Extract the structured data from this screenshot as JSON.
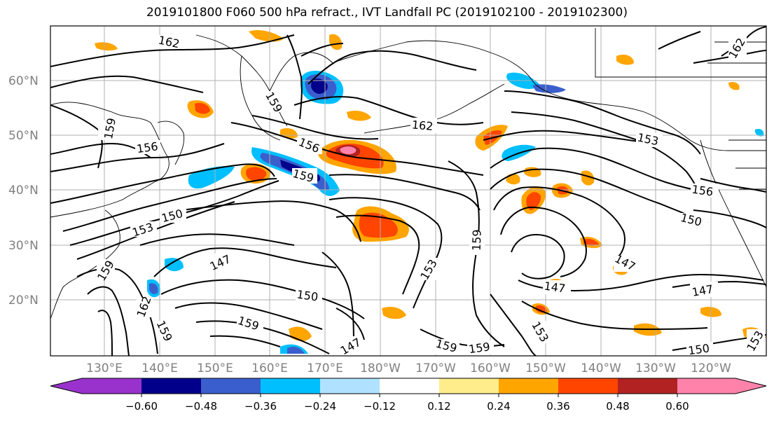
{
  "title": "2019101800 F060 500 hPa refract., IVT Landfall PC (2019102100 - 2019102300)",
  "lat_labels": [
    "60°N",
    "50°N",
    "40°N",
    "30°N",
    "20°N"
  ],
  "lon_labels": [
    "130°E",
    "140°E",
    "150°E",
    "160°E",
    "170°E",
    "180°W",
    "170°W",
    "160°W",
    "150°W",
    "140°W",
    "130°W",
    "120°W"
  ],
  "contour_labels": [
    "162",
    "159",
    "156",
    "159",
    "156",
    "159",
    "150",
    "153",
    "159",
    "162",
    "159",
    "147",
    "150",
    "159",
    "147",
    "153",
    "159",
    "159",
    "159",
    "162",
    "153",
    "153",
    "156",
    "150",
    "147",
    "147",
    "147",
    "150",
    "153",
    "162"
  ],
  "colorbar": {
    "ticks": [
      "−0.60",
      "−0.48",
      "−0.36",
      "−0.24",
      "−0.12",
      "0.12",
      "0.24",
      "0.36",
      "0.48",
      "0.60"
    ],
    "colors": [
      "#9932CC",
      "#00008B",
      "#3A5FCD",
      "#00BFFF",
      "#B0E2FF",
      "#FFFFFF",
      "#FFEC8B",
      "#FFA500",
      "#FF4500",
      "#B22222",
      "#FF82AB"
    ]
  }
}
